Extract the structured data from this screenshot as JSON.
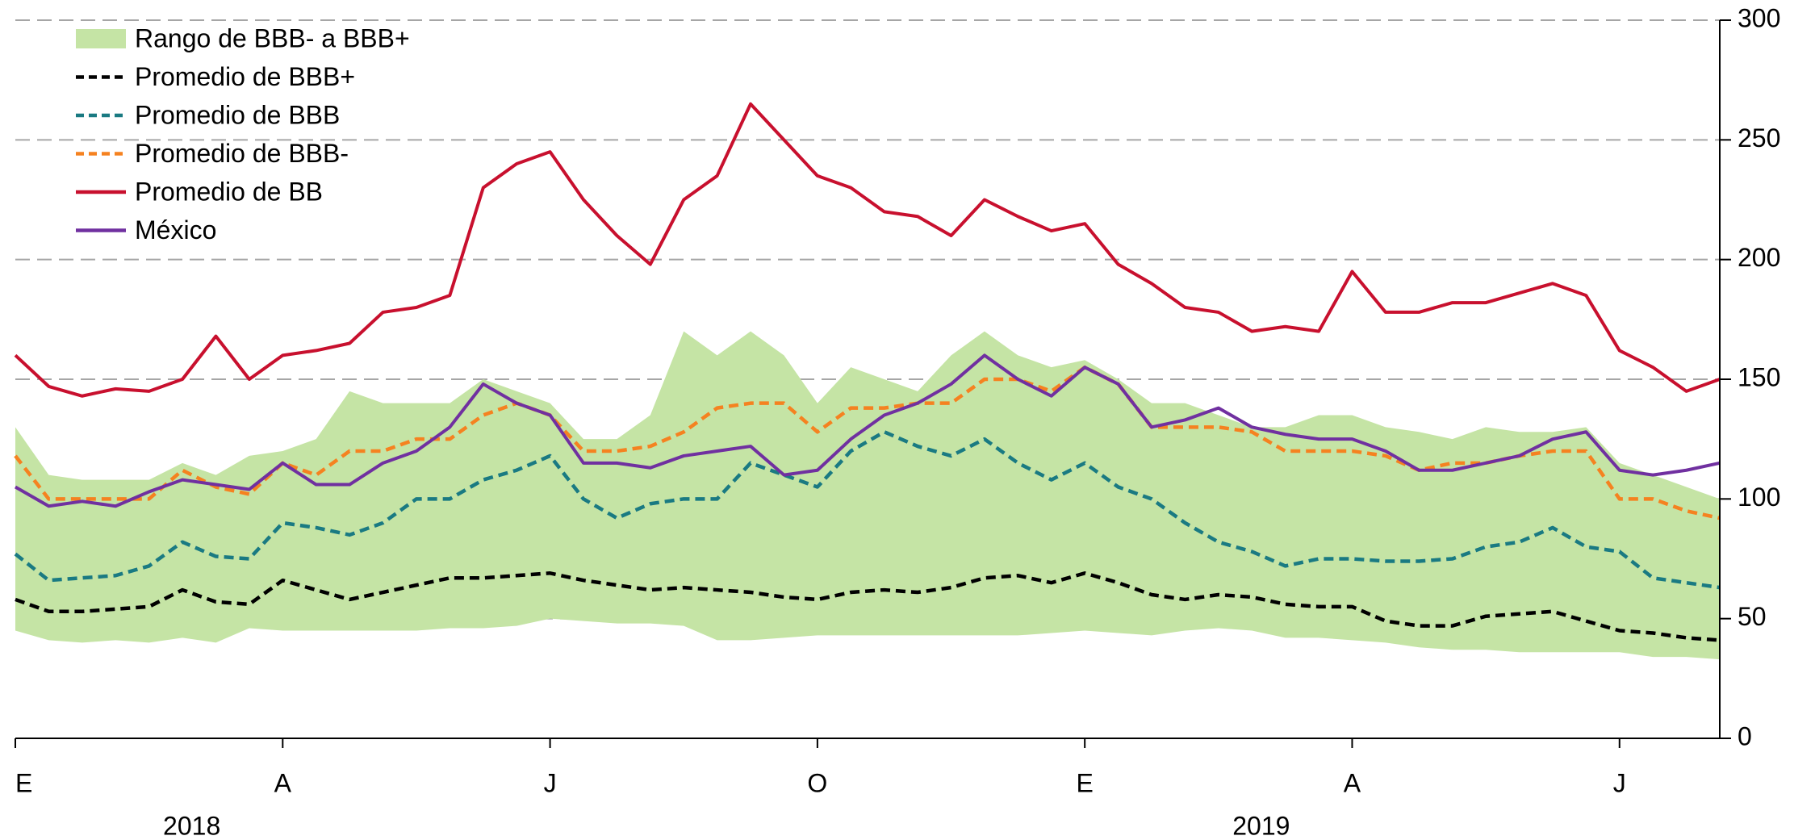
{
  "chart_data": {
    "type": "line",
    "categories": [
      "E",
      null,
      null,
      null,
      null,
      null,
      null,
      null,
      "A",
      null,
      null,
      null,
      null,
      null,
      null,
      null,
      "J",
      null,
      null,
      null,
      null,
      null,
      null,
      null,
      "O",
      null,
      null,
      null,
      null,
      null,
      null,
      null,
      "E",
      null,
      null,
      null,
      null,
      null,
      null,
      null,
      "A",
      null,
      null,
      null,
      null,
      null,
      null,
      null,
      "J",
      null,
      null,
      null
    ],
    "year_labels": [
      {
        "index": 4,
        "label": "2018"
      },
      {
        "index": 36,
        "label": "2019"
      }
    ],
    "ylim": [
      0,
      300
    ],
    "yticks": [
      0,
      50,
      100,
      150,
      200,
      250,
      300
    ],
    "y_axis_side": "right",
    "grid": true,
    "legend": "top-left",
    "band": {
      "name": "Rango de BBB- a BBB+",
      "color": "#c5e4a5",
      "low": [
        45,
        41,
        40,
        41,
        40,
        42,
        40,
        46,
        45,
        45,
        45,
        45,
        45,
        46,
        46,
        47,
        50,
        49,
        48,
        48,
        47,
        41,
        41,
        42,
        43,
        43,
        43,
        43,
        43,
        43,
        43,
        44,
        45,
        44,
        43,
        45,
        46,
        45,
        42,
        42,
        41,
        40,
        38,
        37,
        37,
        36,
        36,
        36,
        36,
        34,
        34,
        33
      ],
      "high": [
        130,
        110,
        108,
        108,
        108,
        115,
        110,
        118,
        120,
        125,
        145,
        140,
        140,
        140,
        150,
        145,
        140,
        125,
        125,
        135,
        170,
        160,
        170,
        160,
        140,
        155,
        150,
        145,
        160,
        170,
        160,
        155,
        158,
        150,
        140,
        140,
        135,
        130,
        130,
        135,
        135,
        130,
        128,
        125,
        130,
        128,
        128,
        130,
        115,
        110,
        105,
        100
      ]
    },
    "series": [
      {
        "name": "Promedio de BBB+",
        "color": "#000000",
        "style": "dashed",
        "values": [
          58,
          53,
          53,
          54,
          55,
          62,
          57,
          56,
          66,
          62,
          58,
          61,
          64,
          67,
          67,
          68,
          69,
          66,
          64,
          62,
          63,
          62,
          61,
          59,
          58,
          61,
          62,
          61,
          63,
          67,
          68,
          65,
          69,
          65,
          60,
          58,
          60,
          59,
          56,
          55,
          55,
          49,
          47,
          47,
          51,
          52,
          53,
          49,
          45,
          44,
          42,
          41
        ]
      },
      {
        "name": "Promedio de BBB",
        "color": "#1a7a82",
        "style": "dashed",
        "values": [
          77,
          66,
          67,
          68,
          72,
          82,
          76,
          75,
          90,
          88,
          85,
          90,
          100,
          100,
          108,
          112,
          118,
          100,
          92,
          98,
          100,
          100,
          115,
          110,
          105,
          120,
          128,
          122,
          118,
          125,
          115,
          108,
          115,
          105,
          100,
          90,
          82,
          78,
          72,
          75,
          75,
          74,
          74,
          75,
          80,
          82,
          88,
          80,
          78,
          67,
          65,
          63
        ]
      },
      {
        "name": "Promedio de BBB-",
        "color": "#f58220",
        "style": "dashed",
        "values": [
          118,
          100,
          100,
          100,
          100,
          112,
          105,
          102,
          115,
          110,
          120,
          120,
          125,
          125,
          135,
          140,
          135,
          120,
          120,
          122,
          128,
          138,
          140,
          140,
          128,
          138,
          138,
          140,
          140,
          150,
          150,
          145,
          155,
          148,
          130,
          130,
          130,
          128,
          120,
          120,
          120,
          118,
          112,
          115,
          115,
          118,
          120,
          120,
          100,
          100,
          95,
          92
        ]
      },
      {
        "name": "Promedio de BB",
        "color": "#c8102e",
        "style": "solid",
        "values": [
          160,
          147,
          143,
          146,
          145,
          150,
          168,
          150,
          160,
          162,
          165,
          178,
          180,
          185,
          230,
          240,
          245,
          225,
          210,
          198,
          225,
          235,
          265,
          250,
          235,
          230,
          220,
          218,
          210,
          225,
          218,
          212,
          215,
          198,
          190,
          180,
          178,
          170,
          172,
          170,
          195,
          178,
          178,
          182,
          182,
          186,
          190,
          185,
          162,
          155,
          145,
          150
        ]
      },
      {
        "name": "México",
        "color": "#7030a0",
        "style": "solid",
        "values": [
          105,
          97,
          99,
          97,
          103,
          108,
          106,
          104,
          115,
          106,
          106,
          115,
          120,
          130,
          148,
          140,
          135,
          115,
          115,
          113,
          118,
          120,
          122,
          110,
          112,
          125,
          135,
          140,
          148,
          160,
          150,
          143,
          155,
          148,
          130,
          133,
          138,
          130,
          127,
          125,
          125,
          120,
          112,
          112,
          115,
          118,
          125,
          128,
          112,
          110,
          112,
          115
        ]
      }
    ]
  }
}
